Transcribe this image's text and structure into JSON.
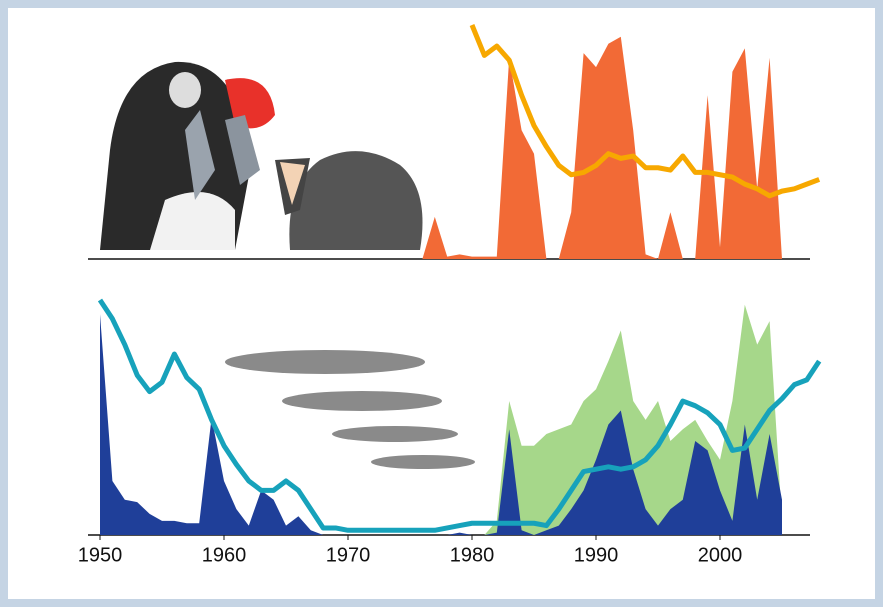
{
  "chart_data": [
    {
      "type": "area",
      "xlim": [
        1950,
        2009
      ],
      "ylim": [
        0,
        100
      ],
      "series": [
        {
          "style": "area",
          "color": "#f26a36",
          "x": [
            1976,
            1977,
            1978,
            1979,
            1980,
            1981,
            1982,
            1983,
            1984,
            1985,
            1986,
            1987,
            1988,
            1989,
            1990,
            1991,
            1992,
            1993,
            1994,
            1995,
            1996,
            1997,
            1998,
            1999,
            2000,
            2001,
            2002,
            2003,
            2004,
            2005
          ],
          "values": [
            0,
            18,
            1,
            2,
            1,
            1,
            1,
            86,
            55,
            45,
            0,
            0,
            20,
            88,
            82,
            92,
            95,
            55,
            2,
            0,
            20,
            0,
            0,
            70,
            5,
            80,
            90,
            30,
            86,
            0
          ]
        },
        {
          "style": "line",
          "color": "#f7a800",
          "x": [
            1980,
            1981,
            1982,
            1983,
            1984,
            1985,
            1986,
            1987,
            1988,
            1989,
            1990,
            1991,
            1992,
            1993,
            1994,
            1995,
            1996,
            1997,
            1998,
            1999,
            2000,
            2001,
            2002,
            2003,
            2004,
            2005,
            2006,
            2007,
            2008
          ],
          "values": [
            100,
            87,
            91,
            85,
            70,
            57,
            48,
            40,
            36,
            37,
            40,
            45,
            43,
            44,
            39,
            39,
            38,
            44,
            37,
            37,
            36,
            35,
            32,
            30,
            27,
            29,
            30,
            32,
            34
          ]
        }
      ]
    },
    {
      "type": "area",
      "xlim": [
        1950,
        2009
      ],
      "ylim": [
        0,
        100
      ],
      "xticks": [
        1950,
        1960,
        1970,
        1980,
        1990,
        2000
      ],
      "series": [
        {
          "style": "area",
          "color": "#a6d78a",
          "x": [
            1981,
            1982,
            1983,
            1984,
            1985,
            1986,
            1987,
            1988,
            1989,
            1990,
            1991,
            1992,
            1993,
            1994,
            1995,
            1996,
            1997,
            1998,
            1999,
            2000,
            2001,
            2002,
            2003,
            2004,
            2005
          ],
          "values": [
            0,
            6,
            57,
            38,
            38,
            43,
            45,
            47,
            57,
            62,
            74,
            87,
            57,
            49,
            57,
            40,
            45,
            49,
            40,
            32,
            57,
            98,
            81,
            91,
            6
          ]
        },
        {
          "style": "area",
          "color": "#1f3f99",
          "x": [
            1950,
            1951,
            1952,
            1953,
            1954,
            1955,
            1956,
            1957,
            1958,
            1959,
            1960,
            1961,
            1962,
            1963,
            1964,
            1965,
            1966,
            1967,
            1968,
            1969,
            1970,
            1971,
            1972,
            1973,
            1974,
            1975,
            1976,
            1977,
            1978,
            1979,
            1980,
            1981,
            1982,
            1983,
            1984,
            1985,
            1986,
            1987,
            1988,
            1989,
            1990,
            1991,
            1992,
            1993,
            1994,
            1995,
            1996,
            1997,
            1998,
            1999,
            2000,
            2001,
            2002,
            2003,
            2004,
            2005
          ],
          "values": [
            94,
            23,
            15,
            14,
            9,
            6,
            6,
            5,
            5,
            50,
            23,
            11,
            4,
            19,
            15,
            4,
            8,
            2,
            0,
            0,
            0,
            0,
            0,
            0,
            0,
            0,
            0,
            0,
            0,
            1,
            0,
            0,
            1,
            45,
            2,
            0,
            2,
            4,
            11,
            19,
            32,
            47,
            53,
            28,
            11,
            4,
            11,
            15,
            40,
            36,
            19,
            6,
            47,
            15,
            43,
            15
          ]
        },
        {
          "style": "line",
          "color": "#17a2bb",
          "x": [
            1950,
            1951,
            1952,
            1953,
            1954,
            1955,
            1956,
            1957,
            1958,
            1959,
            1960,
            1961,
            1962,
            1963,
            1964,
            1965,
            1966,
            1967,
            1968,
            1969,
            1970,
            1971,
            1972,
            1973,
            1974,
            1975,
            1976,
            1977,
            1978,
            1979,
            1980,
            1981,
            1982,
            1983,
            1984,
            1985,
            1986,
            1987,
            1988,
            1989,
            1990,
            1991,
            1992,
            1993,
            1994,
            1995,
            1996,
            1997,
            1998,
            1999,
            2000,
            2001,
            2002,
            2003,
            2004,
            2005,
            2006,
            2007,
            2008
          ],
          "values": [
            100,
            92,
            81,
            68,
            61,
            65,
            77,
            67,
            62,
            49,
            38,
            30,
            23,
            19,
            19,
            23,
            19,
            11,
            3,
            3,
            2,
            2,
            2,
            2,
            2,
            2,
            2,
            2,
            3,
            4,
            5,
            5,
            5,
            5,
            5,
            5,
            4,
            11,
            19,
            27,
            28,
            29,
            28,
            29,
            32,
            38,
            47,
            57,
            55,
            52,
            47,
            36,
            37,
            45,
            53,
            58,
            64,
            66,
            74
          ]
        }
      ]
    }
  ]
}
